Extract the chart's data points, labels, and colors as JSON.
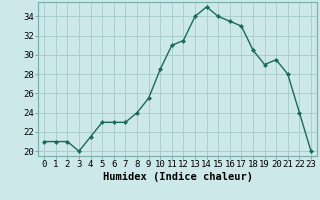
{
  "x": [
    0,
    1,
    2,
    3,
    4,
    5,
    6,
    7,
    8,
    9,
    10,
    11,
    12,
    13,
    14,
    15,
    16,
    17,
    18,
    19,
    20,
    21,
    22,
    23
  ],
  "y": [
    21,
    21,
    21,
    20,
    21.5,
    23,
    23,
    23,
    24,
    25.5,
    28.5,
    31,
    31.5,
    34,
    35,
    34,
    33.5,
    33,
    30.5,
    29,
    29.5,
    28,
    24,
    20
  ],
  "line_color": "#1a6b5a",
  "marker": "D",
  "marker_size": 2.0,
  "bg_color": "#cce8e8",
  "grid_color": "#aacece",
  "xlabel": "Humidex (Indice chaleur)",
  "ylabel_ticks": [
    20,
    22,
    24,
    26,
    28,
    30,
    32,
    34
  ],
  "xlim": [
    -0.5,
    23.5
  ],
  "ylim": [
    19.5,
    35.5
  ],
  "xlabel_fontsize": 7.5,
  "tick_fontsize": 6.5
}
